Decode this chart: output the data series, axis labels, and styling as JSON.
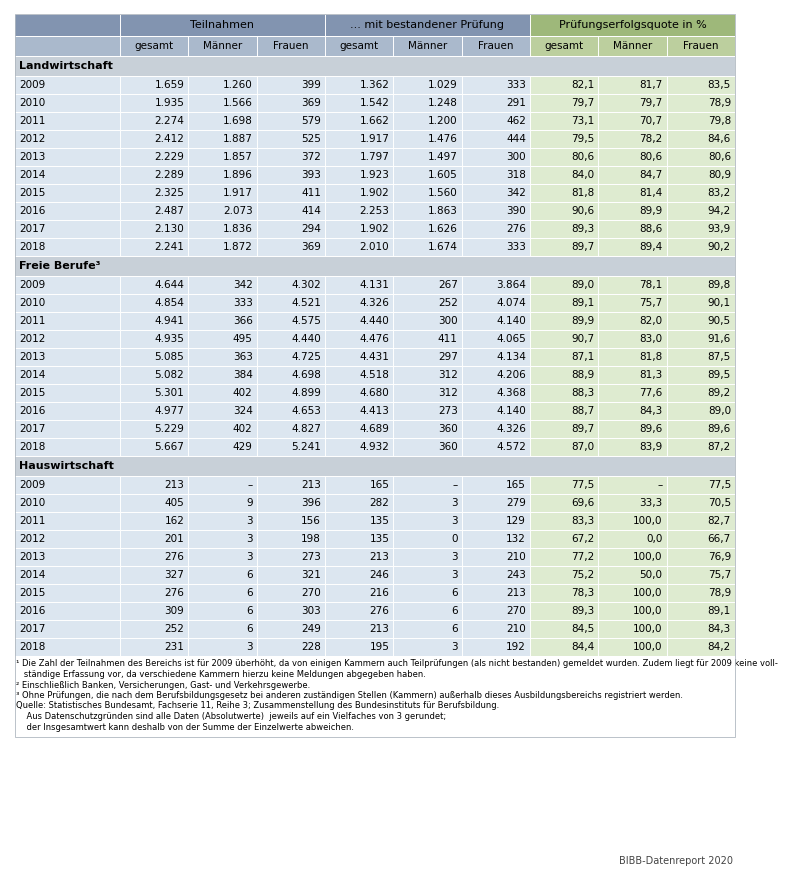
{
  "sections": [
    {
      "name": "Landwirtschaft",
      "rows": [
        [
          "2009",
          "1.659",
          "1.260",
          "399",
          "1.362",
          "1.029",
          "333",
          "82,1",
          "81,7",
          "83,5"
        ],
        [
          "2010",
          "1.935",
          "1.566",
          "369",
          "1.542",
          "1.248",
          "291",
          "79,7",
          "79,7",
          "78,9"
        ],
        [
          "2011",
          "2.274",
          "1.698",
          "579",
          "1.662",
          "1.200",
          "462",
          "73,1",
          "70,7",
          "79,8"
        ],
        [
          "2012",
          "2.412",
          "1.887",
          "525",
          "1.917",
          "1.476",
          "444",
          "79,5",
          "78,2",
          "84,6"
        ],
        [
          "2013",
          "2.229",
          "1.857",
          "372",
          "1.797",
          "1.497",
          "300",
          "80,6",
          "80,6",
          "80,6"
        ],
        [
          "2014",
          "2.289",
          "1.896",
          "393",
          "1.923",
          "1.605",
          "318",
          "84,0",
          "84,7",
          "80,9"
        ],
        [
          "2015",
          "2.325",
          "1.917",
          "411",
          "1.902",
          "1.560",
          "342",
          "81,8",
          "81,4",
          "83,2"
        ],
        [
          "2016",
          "2.487",
          "2.073",
          "414",
          "2.253",
          "1.863",
          "390",
          "90,6",
          "89,9",
          "94,2"
        ],
        [
          "2017",
          "2.130",
          "1.836",
          "294",
          "1.902",
          "1.626",
          "276",
          "89,3",
          "88,6",
          "93,9"
        ],
        [
          "2018",
          "2.241",
          "1.872",
          "369",
          "2.010",
          "1.674",
          "333",
          "89,7",
          "89,4",
          "90,2"
        ]
      ]
    },
    {
      "name": "Freie Berufe³",
      "rows": [
        [
          "2009",
          "4.644",
          "342",
          "4.302",
          "4.131",
          "267",
          "3.864",
          "89,0",
          "78,1",
          "89,8"
        ],
        [
          "2010",
          "4.854",
          "333",
          "4.521",
          "4.326",
          "252",
          "4.074",
          "89,1",
          "75,7",
          "90,1"
        ],
        [
          "2011",
          "4.941",
          "366",
          "4.575",
          "4.440",
          "300",
          "4.140",
          "89,9",
          "82,0",
          "90,5"
        ],
        [
          "2012",
          "4.935",
          "495",
          "4.440",
          "4.476",
          "411",
          "4.065",
          "90,7",
          "83,0",
          "91,6"
        ],
        [
          "2013",
          "5.085",
          "363",
          "4.725",
          "4.431",
          "297",
          "4.134",
          "87,1",
          "81,8",
          "87,5"
        ],
        [
          "2014",
          "5.082",
          "384",
          "4.698",
          "4.518",
          "312",
          "4.206",
          "88,9",
          "81,3",
          "89,5"
        ],
        [
          "2015",
          "5.301",
          "402",
          "4.899",
          "4.680",
          "312",
          "4.368",
          "88,3",
          "77,6",
          "89,2"
        ],
        [
          "2016",
          "4.977",
          "324",
          "4.653",
          "4.413",
          "273",
          "4.140",
          "88,7",
          "84,3",
          "89,0"
        ],
        [
          "2017",
          "5.229",
          "402",
          "4.827",
          "4.689",
          "360",
          "4.326",
          "89,7",
          "89,6",
          "89,6"
        ],
        [
          "2018",
          "5.667",
          "429",
          "5.241",
          "4.932",
          "360",
          "4.572",
          "87,0",
          "83,9",
          "87,2"
        ]
      ]
    },
    {
      "name": "Hauswirtschaft",
      "rows": [
        [
          "2009",
          "213",
          "–",
          "213",
          "165",
          "–",
          "165",
          "77,5",
          "–",
          "77,5"
        ],
        [
          "2010",
          "405",
          "9",
          "396",
          "282",
          "3",
          "279",
          "69,6",
          "33,3",
          "70,5"
        ],
        [
          "2011",
          "162",
          "3",
          "156",
          "135",
          "3",
          "129",
          "83,3",
          "100,0",
          "82,7"
        ],
        [
          "2012",
          "201",
          "3",
          "198",
          "135",
          "0",
          "132",
          "67,2",
          "0,0",
          "66,7"
        ],
        [
          "2013",
          "276",
          "3",
          "273",
          "213",
          "3",
          "210",
          "77,2",
          "100,0",
          "76,9"
        ],
        [
          "2014",
          "327",
          "6",
          "321",
          "246",
          "3",
          "243",
          "75,2",
          "50,0",
          "75,7"
        ],
        [
          "2015",
          "276",
          "6",
          "270",
          "216",
          "6",
          "213",
          "78,3",
          "100,0",
          "78,9"
        ],
        [
          "2016",
          "309",
          "6",
          "303",
          "276",
          "6",
          "270",
          "89,3",
          "100,0",
          "89,1"
        ],
        [
          "2017",
          "252",
          "6",
          "249",
          "213",
          "6",
          "210",
          "84,5",
          "100,0",
          "84,3"
        ],
        [
          "2018",
          "231",
          "3",
          "228",
          "195",
          "3",
          "192",
          "84,4",
          "100,0",
          "84,2"
        ]
      ]
    }
  ],
  "header1_labels": [
    "Teilnahmen",
    "... mit bestandener Prüfung",
    "Prüfungserfolgsquote in %"
  ],
  "header2_labels": [
    "gesamt",
    "Männer",
    "Frauen",
    "gesamt",
    "Männer",
    "Frauen",
    "gesamt",
    "Männer",
    "Frauen"
  ],
  "footnotes": [
    "¹ Die Zahl der Teilnahmen des Bereichs ist für 2009 überhöht, da von einigen Kammern auch Teilprüfungen (als nicht bestanden) gemeldet wurden. Zudem liegt für 2009 keine voll-",
    "   ständige Erfassung vor, da verschiedene Kammern hierzu keine Meldungen abgegeben haben.",
    "² Einschließlich Banken, Versicherungen, Gast- und Verkehrsgewerbe.",
    "³ Ohne Prüfungen, die nach dem Berufsbildungsgesetz bei anderen zuständigen Stellen (Kammern) außerhalb dieses Ausbildungsbereichs registriert werden.",
    "Quelle: Statistisches Bundesamt, Fachserie 11, Reihe 3; Zusammenstellung des Bundesinstituts für Berufsbildung.",
    "    Aus Datenschutzgründen sind alle Daten (Absolutwerte)  jeweils auf ein Vielfaches von 3 gerundet;",
    "    der Insgesamtwert kann deshalb von der Summe der Einzelwerte abweichen."
  ],
  "bibb_text": "BIBB-Datenreport 2020",
  "color_header1_blue": "#8294b0",
  "color_header2_blue": "#aab9cc",
  "color_header1_green": "#9eb87a",
  "color_header2_green": "#bccf9e",
  "color_section": "#c8d0d8",
  "color_data_blue": "#dce6f0",
  "color_data_green": "#deebd0",
  "color_white_line": "#ffffff",
  "color_outer_border": "#b0b8c0"
}
